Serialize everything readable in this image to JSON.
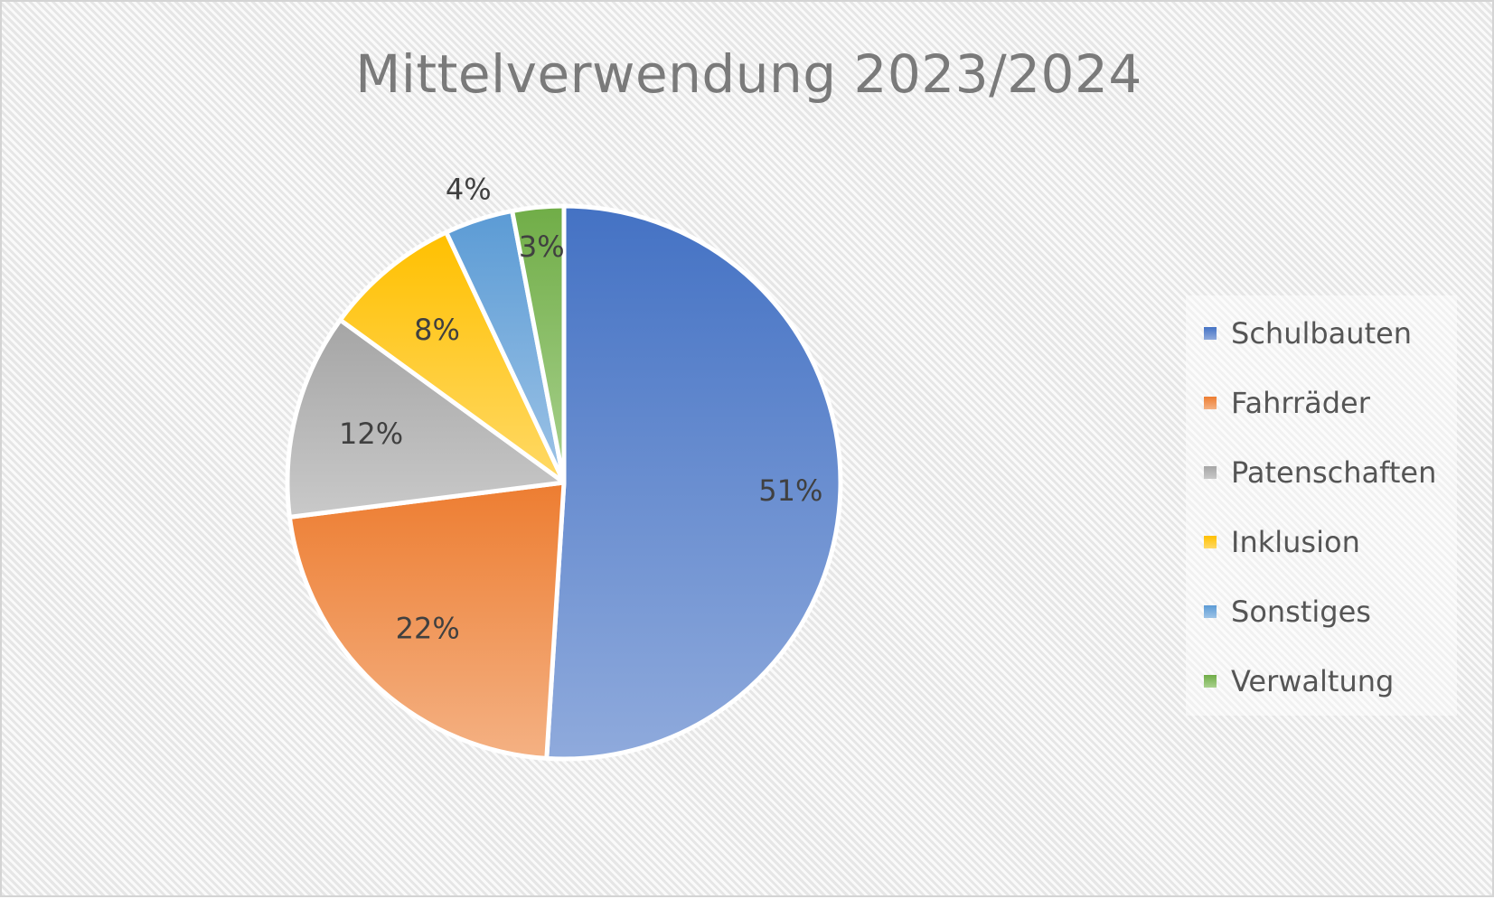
{
  "chart_data": {
    "type": "pie",
    "title": "Mittelverwendung 2023/2024",
    "categories": [
      "Schulbauten",
      "Fahrräder",
      "Patenschaften",
      "Inklusion",
      "Sonstiges",
      "Verwaltung"
    ],
    "values": [
      51,
      22,
      12,
      8,
      4,
      3
    ],
    "labels": [
      "51%",
      "22%",
      "12%",
      "8%",
      "4%",
      "3%"
    ],
    "colors": [
      "#4472c4",
      "#ed7d31",
      "#a5a5a5",
      "#ffc000",
      "#5b9bd5",
      "#70ad47"
    ],
    "legend_position": "right",
    "start_angle": "12 o'clock, clockwise"
  },
  "title": "Mittelverwendung 2023/2024",
  "legend": {
    "items": [
      {
        "label": "Schulbauten",
        "color": "#4472c4"
      },
      {
        "label": "Fahrräder",
        "color": "#ed7d31"
      },
      {
        "label": "Patenschaften",
        "color": "#a5a5a5"
      },
      {
        "label": "Inklusion",
        "color": "#ffc000"
      },
      {
        "label": "Sonstiges",
        "color": "#5b9bd5"
      },
      {
        "label": "Verwaltung",
        "color": "#70ad47"
      }
    ]
  }
}
